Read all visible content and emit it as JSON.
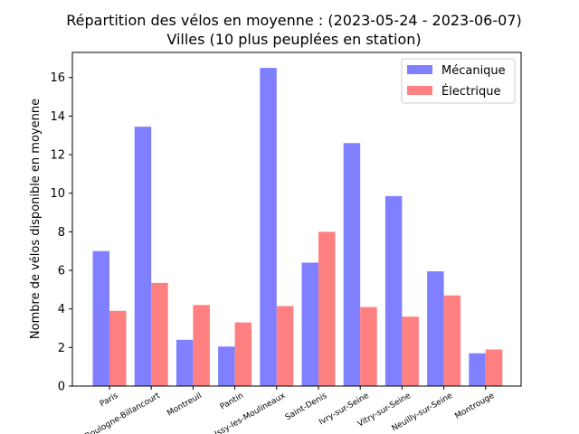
{
  "chart_data": {
    "type": "bar",
    "title": "Répartition des vélos en moyenne  : (2023-05-24 - 2023-06-07)",
    "subtitle": "Villes (10 plus peuplées en station)",
    "xlabel": "",
    "ylabel": "Nombre de vélos disponible en moyenne",
    "ylim": [
      0,
      17.3
    ],
    "yticks": [
      0,
      2,
      4,
      6,
      8,
      10,
      12,
      14,
      16
    ],
    "grid": false,
    "legend_position": "top-right",
    "categories": [
      "Paris",
      "Boulogne-Billancourt",
      "Montreuil",
      "Pantin",
      "Issy-les-Moulineaux",
      "Saint-Denis",
      "Ivry-sur-Seine",
      "Vitry-sur-Seine",
      "Neuilly-sur-Seine",
      "Montrouge"
    ],
    "series": [
      {
        "name": "Mécanique",
        "color": "#8080ff",
        "values": [
          7.0,
          13.45,
          2.4,
          2.05,
          16.5,
          6.4,
          12.6,
          9.85,
          5.95,
          1.7
        ]
      },
      {
        "name": "Électrique",
        "color": "#ff8080",
        "values": [
          3.9,
          5.35,
          4.2,
          3.3,
          4.15,
          8.0,
          4.1,
          3.6,
          4.7,
          1.9
        ]
      }
    ]
  }
}
